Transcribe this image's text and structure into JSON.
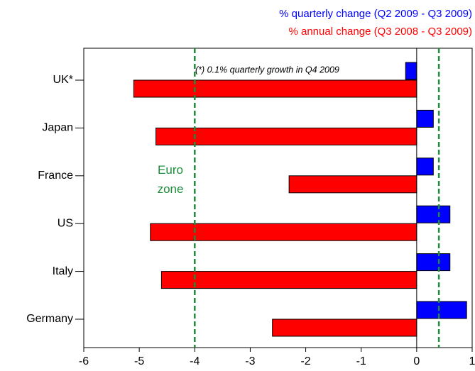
{
  "chart_data": {
    "type": "barh",
    "categories": [
      "UK*",
      "Japan",
      "France",
      "US",
      "Italy",
      "Germany"
    ],
    "series": [
      {
        "name": "% quarterly change (Q2 2009 - Q3 2009)",
        "color": "#0000ff",
        "values": [
          -0.2,
          0.3,
          0.3,
          0.6,
          0.6,
          0.9
        ]
      },
      {
        "name": "% annual change (Q3 2008 - Q3 2009)",
        "color": "#ff0000",
        "values": [
          -5.1,
          -4.7,
          -2.3,
          -4.8,
          -4.6,
          -2.6
        ]
      }
    ],
    "xlim": [
      -6,
      1
    ],
    "xticks": [
      -6,
      -5,
      -4,
      -3,
      -2,
      -1,
      0,
      1
    ],
    "reference_lines": [
      {
        "value": -4,
        "color": "#1e8c3c"
      },
      {
        "value": 0.4,
        "color": "#1e8c3c"
      }
    ],
    "reference_label": "Euro zone",
    "annotation": "(*) 0.1% quarterly growth in Q4 2009",
    "legend": "top-right",
    "grid": false
  }
}
